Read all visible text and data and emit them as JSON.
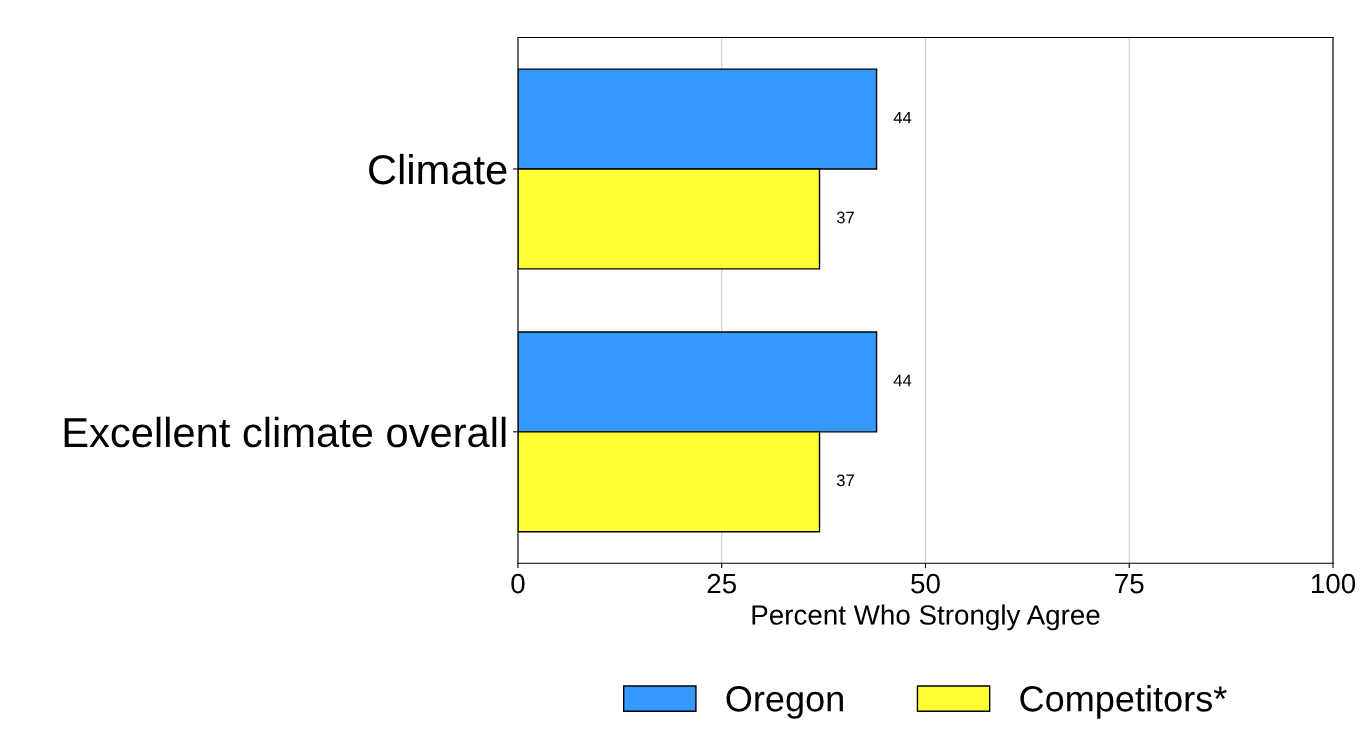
{
  "chart_data": {
    "type": "bar",
    "orientation": "horizontal",
    "categories": [
      "Climate",
      "Excellent climate overall"
    ],
    "series": [
      {
        "name": "Oregon",
        "color": "#3399ff",
        "values": [
          44,
          44
        ]
      },
      {
        "name": "Competitors*",
        "color": "#ffff33",
        "values": [
          37,
          37
        ]
      }
    ],
    "xlabel": "Percent Who Strongly Agree",
    "xlim": [
      0,
      100
    ],
    "xticks": [
      0,
      25,
      50,
      75,
      100
    ],
    "grid": "x",
    "legend": "bottom",
    "data_labels": true
  }
}
